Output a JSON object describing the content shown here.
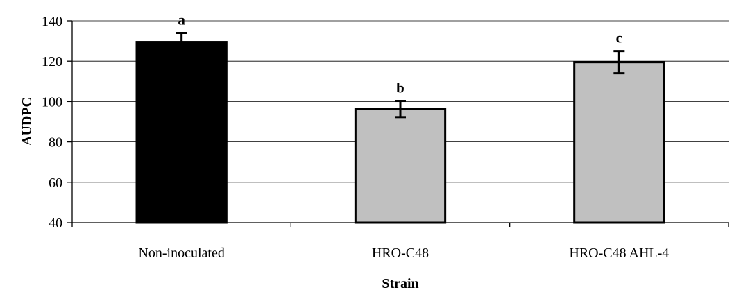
{
  "chart_data": {
    "type": "bar",
    "title": "",
    "xlabel": "Strain",
    "ylabel": "AUDPC",
    "ylim": [
      40,
      140
    ],
    "yticks": [
      40,
      60,
      80,
      100,
      120,
      140
    ],
    "grid": true,
    "legend": "none",
    "categories": [
      "Non-inoculated",
      "HRO-C48",
      "HRO-C48 AHL-4"
    ],
    "values": [
      129.5,
      96.3,
      119.5
    ],
    "errors": [
      4.5,
      4.0,
      5.5
    ],
    "significance_labels": [
      "a",
      "b",
      "c"
    ],
    "bar_colors": [
      "#000000",
      "#c0c0c0",
      "#c0c0c0"
    ]
  }
}
